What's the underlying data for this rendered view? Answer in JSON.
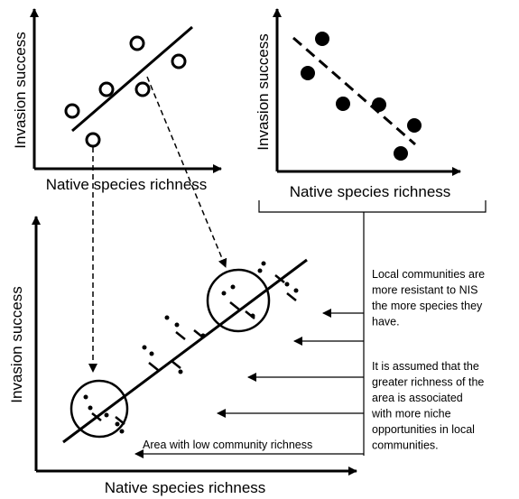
{
  "panels": [
    {
      "y_label": "Invasion success",
      "x_label": "Native species richness"
    },
    {
      "y_label": "Invasion success",
      "x_label": "Native species richness"
    },
    {
      "y_label": "Invasion success",
      "x_label": "Native species richness"
    }
  ],
  "notes": [
    [
      "Local communities are",
      "more resistant to NIS",
      "the more species they",
      "have."
    ],
    [
      "It is assumed that the",
      "greater richness of the",
      "area is associated",
      "with more niche",
      "opportunities in local",
      "communities."
    ]
  ],
  "bottom_note": "Area with low community richness"
}
